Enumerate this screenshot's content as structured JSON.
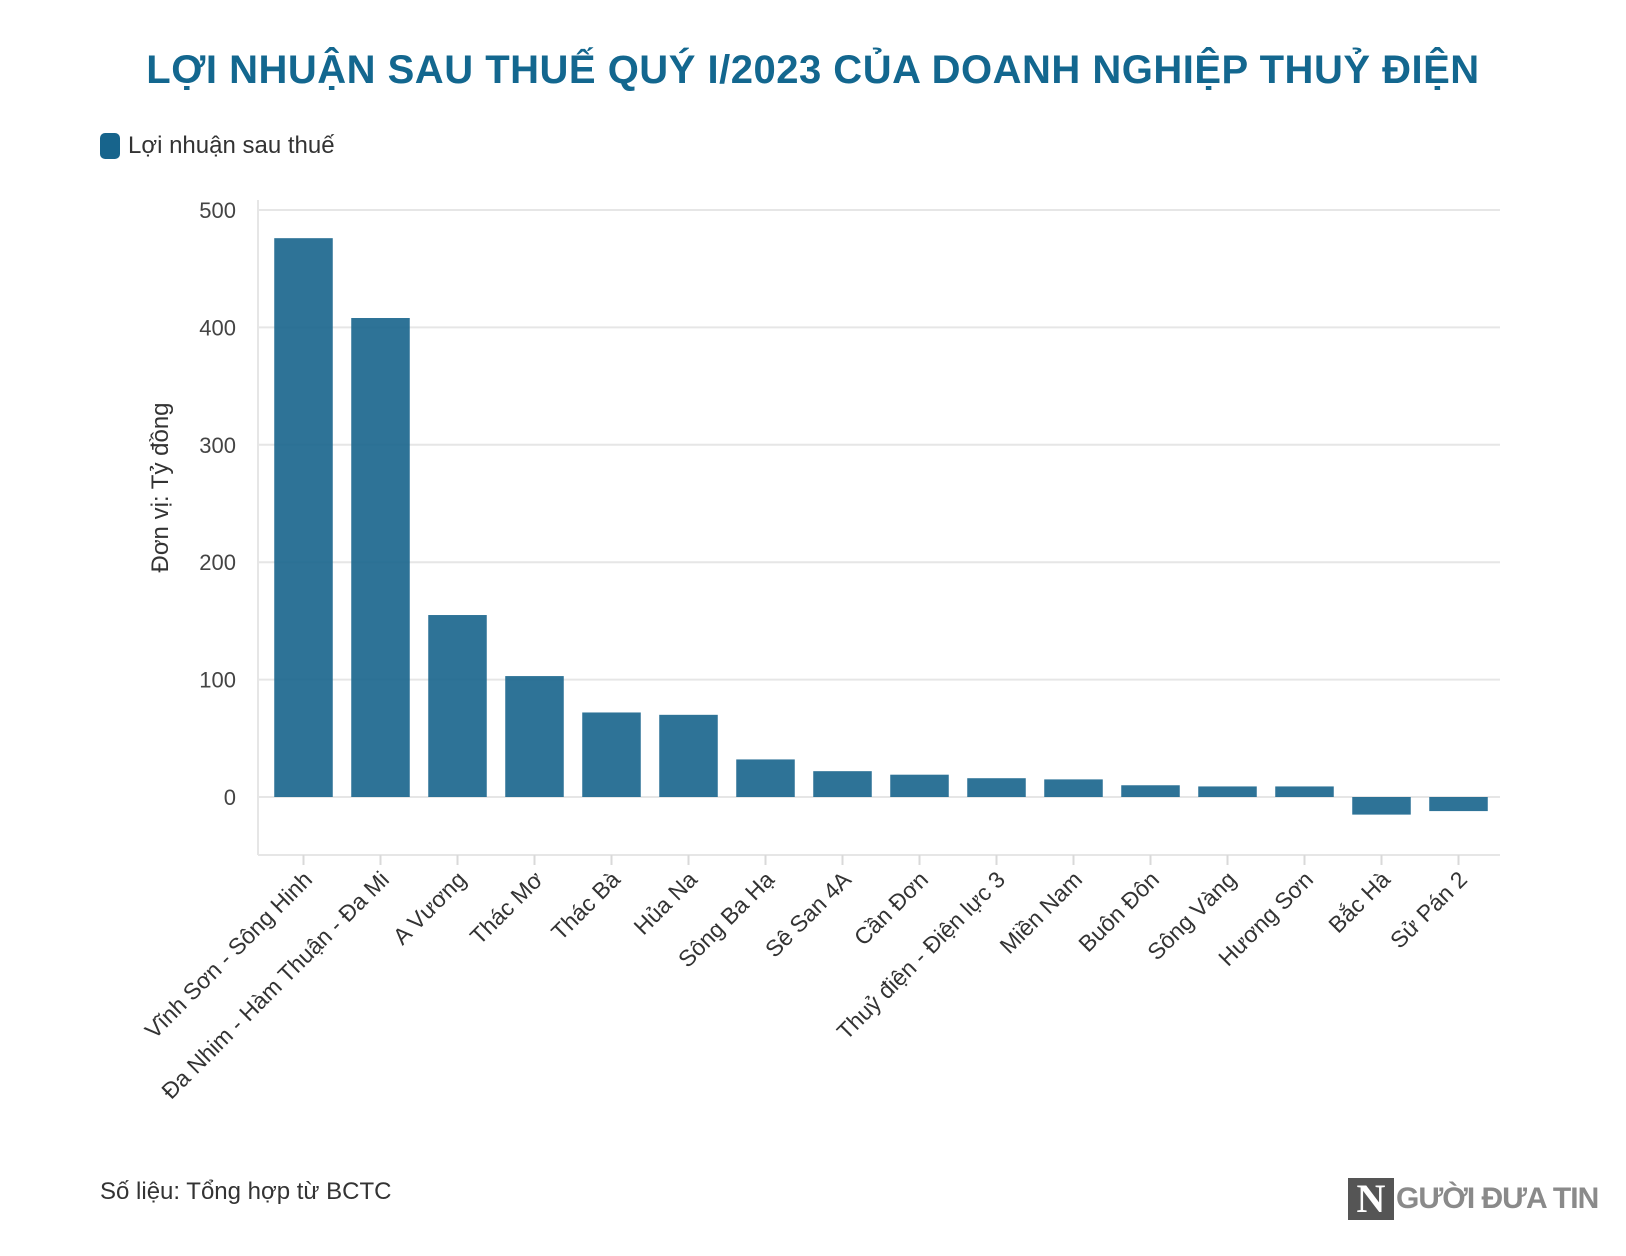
{
  "chart_data": {
    "type": "bar",
    "title": "LỢI NHUẬN SAU THUẾ QUÝ I/2023 CỦA DOANH NGHIỆP THUỶ ĐIỆN",
    "ylabel": "Đơn vị: Tỷ đồng",
    "xlabel": "",
    "ylim": [
      -50,
      500
    ],
    "yticks": [
      0,
      100,
      200,
      300,
      400,
      500
    ],
    "grid": true,
    "legend_position": "top-left",
    "categories": [
      "Vĩnh Sơn - Sông Hinh",
      "Đa Nhim - Hàm Thuận - Đa Mi",
      "A Vương",
      "Thác Mơ",
      "Thác Bà",
      "Hủa Na",
      "Sông Ba Hạ",
      "Sê San 4A",
      "Cần Đơn",
      "Thuỷ điện - Điện lực 3",
      "Miền Nam",
      "Buôn Đôn",
      "Sông Vàng",
      "Hương Sơn",
      "Bắc Hà",
      "Sử Pán 2"
    ],
    "series": [
      {
        "name": "Lợi nhuận sau thuế",
        "color": "#17648c",
        "values": [
          476,
          408,
          155,
          103,
          72,
          70,
          32,
          22,
          19,
          16,
          15,
          10,
          9,
          9,
          -15,
          -12
        ]
      }
    ]
  },
  "source": "Số liệu: Tổng hợp từ BCTC",
  "logo": {
    "mark": "N",
    "text": "GƯỜI ĐƯA TIN"
  }
}
